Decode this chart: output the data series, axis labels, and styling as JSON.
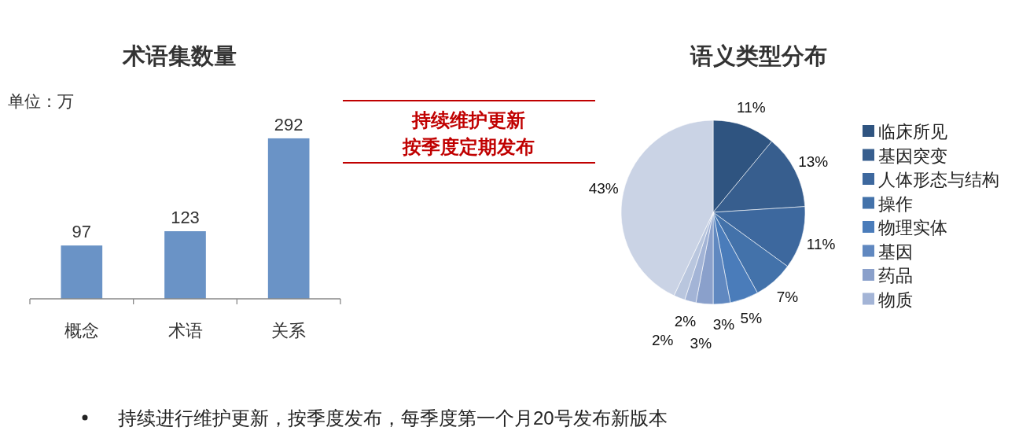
{
  "chart_data": [
    {
      "type": "bar",
      "title": "术语集数量",
      "ylabel": "单位：万",
      "categories": [
        "概念",
        "术语",
        "关系"
      ],
      "values": [
        97,
        123,
        292
      ],
      "color": "#6a93c6",
      "data_labels": true
    },
    {
      "type": "pie",
      "title": "语义类型分布",
      "categories": [
        "临床所见",
        "基因突变",
        "人体形态与结构",
        "操作",
        "物理实体",
        "基因",
        "药品",
        "物质",
        null,
        null
      ],
      "values": [
        11,
        13,
        11,
        7,
        5,
        3,
        3,
        2,
        2,
        43
      ],
      "value_labels": [
        "11%",
        "13%",
        "11%",
        "7%",
        "5%",
        "3%",
        "3%",
        "2%",
        "2%",
        "43%"
      ],
      "colors": [
        "#2f5480",
        "#375e8e",
        "#3d689e",
        "#4372aa",
        "#4a7cba",
        "#6088c0",
        "#8aa0cb",
        "#a3b4d6",
        "#b9c6de",
        "#cad3e5"
      ],
      "legend": "right"
    },
    {
      "type": "other",
      "annotations": [
        "持续维护更新",
        "按季度定期发布",
        "持续进行维护更新，按季度发布，每季度第一个月20号发布新版本"
      ]
    }
  ]
}
